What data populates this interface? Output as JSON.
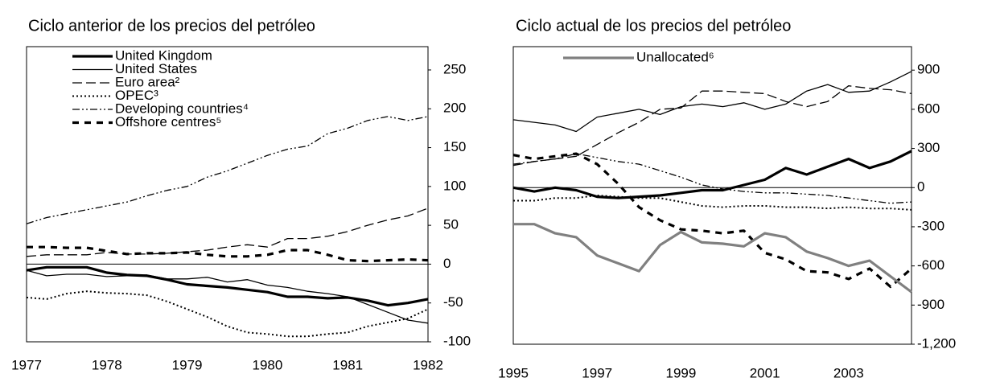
{
  "chart_data": [
    {
      "type": "line",
      "title": "Ciclo anterior de los precios del petróleo",
      "x": [
        1977,
        1977.25,
        1977.5,
        1977.75,
        1978,
        1978.25,
        1978.5,
        1978.75,
        1979,
        1979.25,
        1979.5,
        1979.75,
        1980,
        1980.25,
        1980.5,
        1980.75,
        1981,
        1981.25,
        1981.5,
        1981.75,
        1982
      ],
      "xlim": [
        1977,
        1982
      ],
      "xticks": [
        1977,
        1978,
        1979,
        1980,
        1981,
        1982
      ],
      "ylim": [
        -100,
        280
      ],
      "yticks": [
        -100,
        -50,
        0,
        50,
        100,
        150,
        200,
        250
      ],
      "grid": false,
      "legend": "upper left",
      "series": [
        {
          "name": "United Kingdom",
          "color": "#000000",
          "line_style": "thick",
          "values": [
            -8,
            -4,
            -4,
            -4,
            -11,
            -14,
            -15,
            -20,
            -26,
            -28,
            -30,
            -33,
            -36,
            -42,
            -42,
            -44,
            -43,
            -47,
            -53,
            -50,
            -45
          ]
        },
        {
          "name": "United States",
          "color": "#000000",
          "line_style": "solid",
          "values": [
            -8,
            -15,
            -13,
            -13,
            -16,
            -15,
            -14,
            -19,
            -19,
            -17,
            -23,
            -20,
            -27,
            -30,
            -35,
            -38,
            -42,
            -52,
            -62,
            -72,
            -76
          ]
        },
        {
          "name": "Euro area²",
          "color": "#000000",
          "line_style": "dashed",
          "values": [
            10,
            12,
            12,
            12,
            15,
            13,
            13,
            14,
            16,
            18,
            22,
            25,
            22,
            33,
            33,
            36,
            42,
            50,
            57,
            62,
            72
          ]
        },
        {
          "name": "OPEC³",
          "color": "#000000",
          "line_style": "dotted",
          "values": [
            -43,
            -45,
            -38,
            -35,
            -37,
            -38,
            -40,
            -48,
            -58,
            -68,
            -80,
            -88,
            -90,
            -93,
            -93,
            -90,
            -88,
            -80,
            -75,
            -70,
            -58
          ]
        },
        {
          "name": "Developing countries⁴",
          "color": "#000000",
          "line_style": "dash-dot",
          "values": [
            52,
            60,
            65,
            70,
            75,
            80,
            88,
            95,
            100,
            112,
            120,
            130,
            140,
            148,
            152,
            168,
            175,
            185,
            190,
            185,
            190
          ]
        },
        {
          "name": "Offshore centres⁵",
          "color": "#000000",
          "line_style": "thick-dashed",
          "values": [
            22,
            22,
            21,
            21,
            17,
            13,
            14,
            14,
            15,
            12,
            10,
            10,
            12,
            18,
            18,
            12,
            5,
            4,
            5,
            6,
            5
          ]
        }
      ]
    },
    {
      "type": "line",
      "title": "Ciclo actual de los precios del petróleo",
      "x": [
        1995,
        1995.5,
        1996,
        1996.5,
        1997,
        1997.5,
        1998,
        1998.5,
        1999,
        1999.5,
        2000,
        2000.5,
        2001,
        2001.5,
        2002,
        2002.5,
        2003,
        2003.5,
        2004,
        2004.5
      ],
      "xlim": [
        1995,
        2004.5
      ],
      "xticks": [
        1995,
        1997,
        1999,
        2001,
        2003
      ],
      "ylim": [
        -1200,
        1080
      ],
      "yticks": [
        {
          "value": -1200,
          "label": "-1,200"
        },
        -900,
        -600,
        -300,
        0,
        300,
        600,
        900
      ],
      "grid": false,
      "legend": "upper left",
      "series": [
        {
          "color": "#000000",
          "line_style": "thick",
          "values": [
            0,
            -30,
            0,
            -20,
            -70,
            -80,
            -70,
            -60,
            -40,
            -20,
            -20,
            20,
            60,
            150,
            100,
            160,
            220,
            150,
            200,
            280
          ]
        },
        {
          "color": "#000000",
          "line_style": "solid",
          "values": [
            520,
            500,
            480,
            430,
            540,
            570,
            600,
            560,
            620,
            640,
            620,
            650,
            600,
            640,
            740,
            790,
            730,
            740,
            810,
            890
          ]
        },
        {
          "color": "#000000",
          "line_style": "dashed",
          "values": [
            170,
            200,
            220,
            240,
            330,
            420,
            500,
            600,
            610,
            740,
            740,
            730,
            720,
            660,
            620,
            660,
            780,
            760,
            750,
            720
          ]
        },
        {
          "color": "#000000",
          "line_style": "dotted",
          "values": [
            -100,
            -100,
            -80,
            -80,
            -60,
            -70,
            -80,
            -80,
            -110,
            -140,
            -150,
            -140,
            -140,
            -150,
            -150,
            -160,
            -150,
            -160,
            -160,
            -170
          ]
        },
        {
          "color": "#000000",
          "line_style": "dash-dot",
          "values": [
            180,
            200,
            220,
            260,
            230,
            200,
            180,
            130,
            80,
            20,
            -10,
            -30,
            -40,
            -40,
            -50,
            -60,
            -80,
            -100,
            -120,
            -110
          ]
        },
        {
          "color": "#000000",
          "line_style": "thick-dashed",
          "values": [
            250,
            220,
            240,
            260,
            180,
            30,
            -150,
            -250,
            -320,
            -330,
            -350,
            -330,
            -500,
            -550,
            -640,
            -650,
            -700,
            -620,
            -760,
            -620
          ]
        },
        {
          "name": "Unallocated⁶",
          "color": "#808080",
          "line_style": "thick",
          "values": [
            -280,
            -280,
            -350,
            -380,
            -520,
            -580,
            -640,
            -440,
            -340,
            -420,
            -430,
            -450,
            -350,
            -380,
            -490,
            -540,
            -600,
            -560,
            -680,
            -800
          ]
        }
      ]
    }
  ]
}
